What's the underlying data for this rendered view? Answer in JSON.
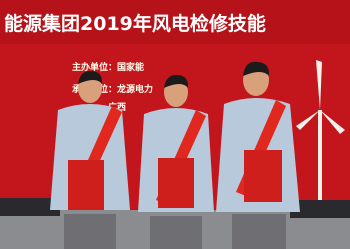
{
  "banner": {
    "title": "能源集团2019年风电检修技能",
    "lines": [
      "主办单位：国家能",
      "承办单位：龙源电力",
      "广西"
    ]
  }
}
